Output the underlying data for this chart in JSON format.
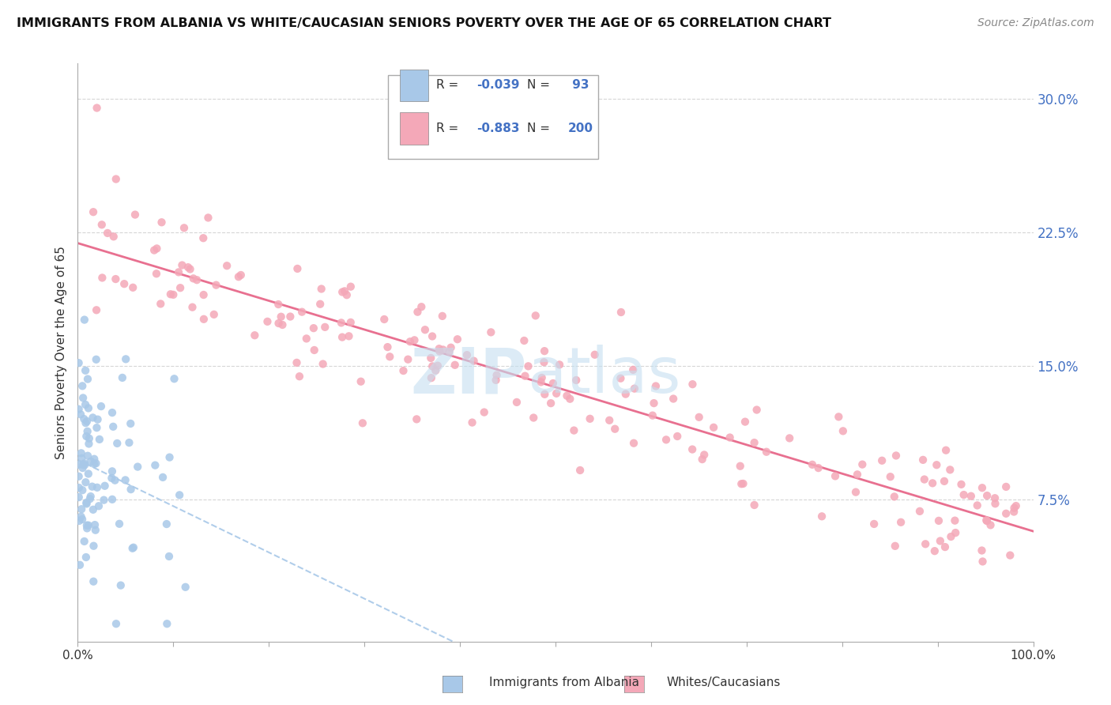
{
  "title": "IMMIGRANTS FROM ALBANIA VS WHITE/CAUCASIAN SENIORS POVERTY OVER THE AGE OF 65 CORRELATION CHART",
  "source": "Source: ZipAtlas.com",
  "ylabel": "Seniors Poverty Over the Age of 65",
  "xlim": [
    0,
    1
  ],
  "ylim": [
    0.0,
    0.32
  ],
  "yticks": [
    0.075,
    0.15,
    0.225,
    0.3
  ],
  "ytick_labels": [
    "7.5%",
    "15.0%",
    "22.5%",
    "30.0%"
  ],
  "xticks": [
    0.0,
    0.1,
    0.2,
    0.3,
    0.4,
    0.5,
    0.6,
    0.7,
    0.8,
    0.9,
    1.0
  ],
  "xtick_labels": [
    "0.0%",
    "",
    "",
    "",
    "",
    "",
    "",
    "",
    "",
    "",
    "100.0%"
  ],
  "blue_R": -0.039,
  "blue_N": 93,
  "pink_R": -0.883,
  "pink_N": 200,
  "blue_color": "#a8c8e8",
  "pink_color": "#f4a8b8",
  "blue_line_color": "#a8c8e8",
  "pink_line_color": "#e87090",
  "legend_blue_label": "Immigrants from Albania",
  "legend_pink_label": "Whites/Caucasians",
  "background_color": "#ffffff",
  "grid_color": "#cccccc",
  "axis_label_color": "#4472c4",
  "text_color": "#333333"
}
